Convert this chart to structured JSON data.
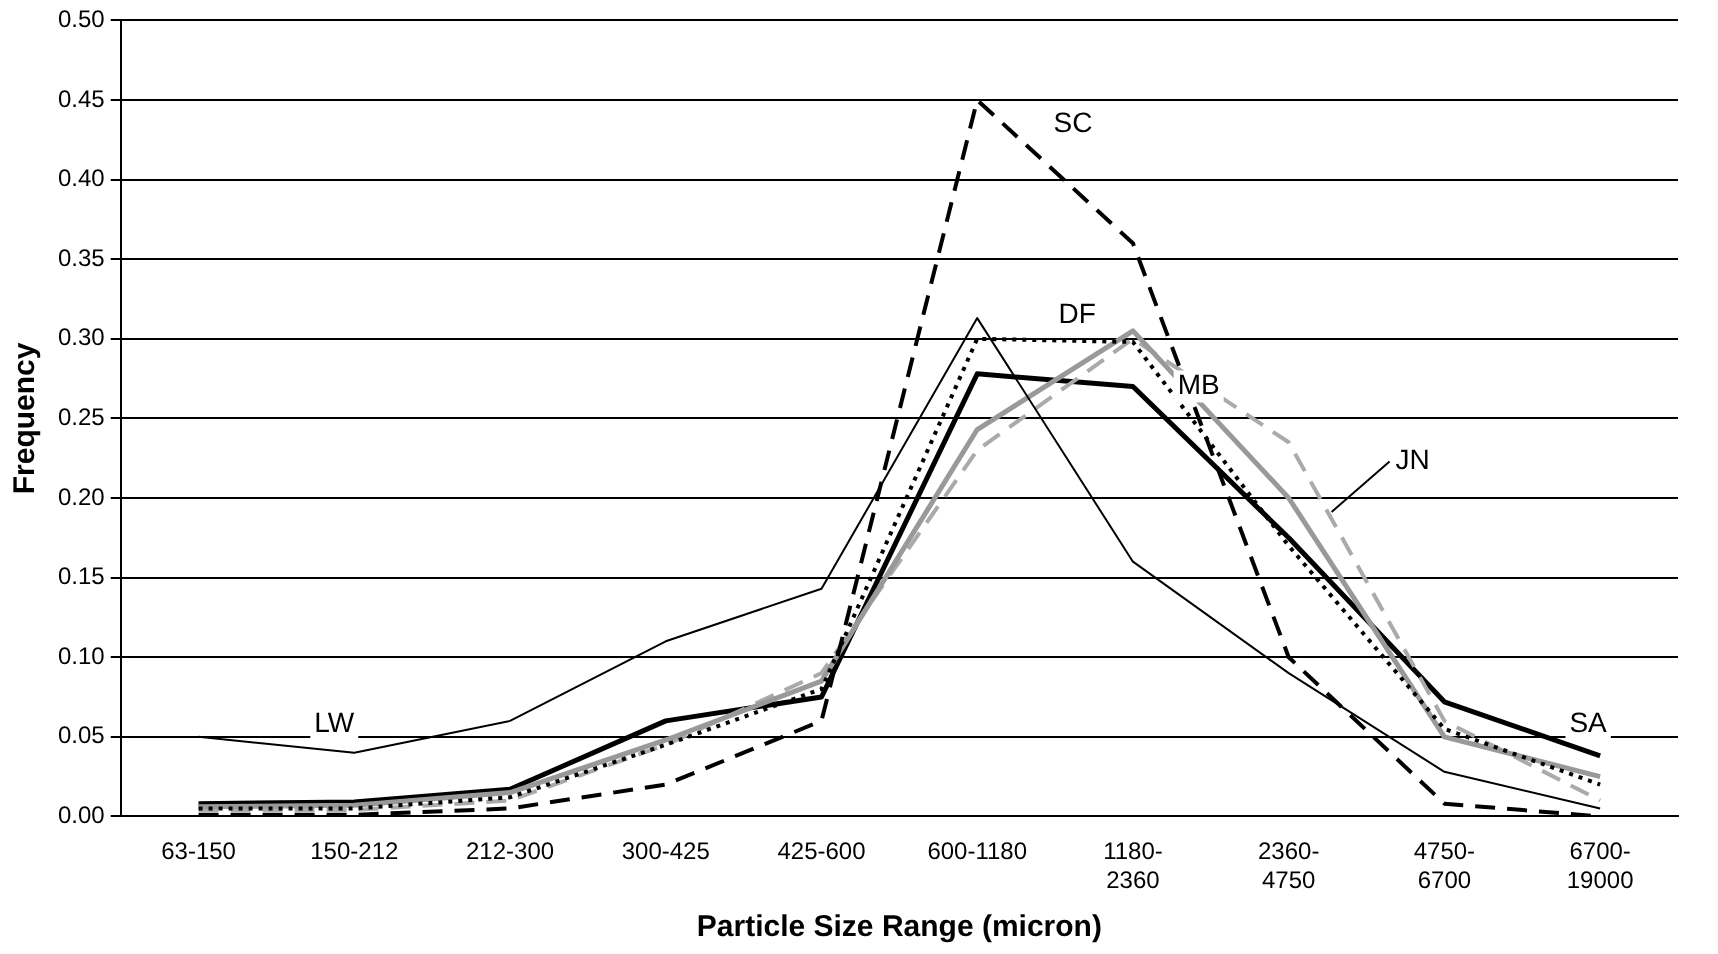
{
  "chart_data": {
    "type": "line",
    "xlabel": "Particle Size Range (micron)",
    "ylabel": "Frequency",
    "categories": [
      "63-150",
      "150-212",
      "212-300",
      "300-425",
      "425-600",
      "600-1180",
      "1180-2360",
      "2360-4750",
      "4750-6700",
      "6700-19000"
    ],
    "series": [
      {
        "name": "LW",
        "color": "#000000",
        "line_style": "solid",
        "values": [
          0.05,
          0.04,
          0.06,
          0.11,
          0.143,
          0.313,
          0.16,
          0.09,
          0.028,
          0.005
        ]
      },
      {
        "name": "SC",
        "color": "#000000",
        "line_style": "dashed",
        "values": [
          0.001,
          0.001,
          0.005,
          0.02,
          0.06,
          0.45,
          0.36,
          0.1,
          0.008,
          0.0
        ]
      },
      {
        "name": "DF",
        "color": "#000000",
        "line_style": "dotted",
        "values": [
          0.005,
          0.005,
          0.012,
          0.045,
          0.08,
          0.3,
          0.298,
          0.17,
          0.055,
          0.02
        ]
      },
      {
        "name": "MB",
        "color": "#999999",
        "line_style": "solid",
        "values": [
          0.006,
          0.007,
          0.015,
          0.048,
          0.085,
          0.243,
          0.305,
          0.2,
          0.05,
          0.025
        ]
      },
      {
        "name": "JN",
        "color": "#aaaaaa",
        "line_style": "dashed",
        "values": [
          0.004,
          0.004,
          0.01,
          0.045,
          0.09,
          0.23,
          0.3,
          0.235,
          0.06,
          0.01
        ]
      },
      {
        "name": "SA",
        "color": "#000000",
        "line_style": "solid",
        "values": [
          0.008,
          0.009,
          0.017,
          0.06,
          0.075,
          0.278,
          0.27,
          0.175,
          0.072,
          0.038
        ]
      }
    ],
    "ylim": [
      0,
      0.5
    ],
    "yticks": [
      {
        "value": 0,
        "label": "0.00"
      },
      {
        "value": 0.05,
        "label": "0.05"
      },
      {
        "value": 0.1,
        "label": "0.10"
      },
      {
        "value": 0.15,
        "label": "0.15"
      },
      {
        "value": 0.2,
        "label": "0.20"
      },
      {
        "value": 0.25,
        "label": "0.25"
      },
      {
        "value": 0.3,
        "label": "0.30"
      },
      {
        "value": 0.35,
        "label": "0.35"
      },
      {
        "value": 0.4,
        "label": "0.40"
      },
      {
        "value": 0.45,
        "label": "0.45"
      },
      {
        "value": 0.5,
        "label": "0.50"
      }
    ],
    "grid": "y",
    "legend": false,
    "marker": "none"
  }
}
